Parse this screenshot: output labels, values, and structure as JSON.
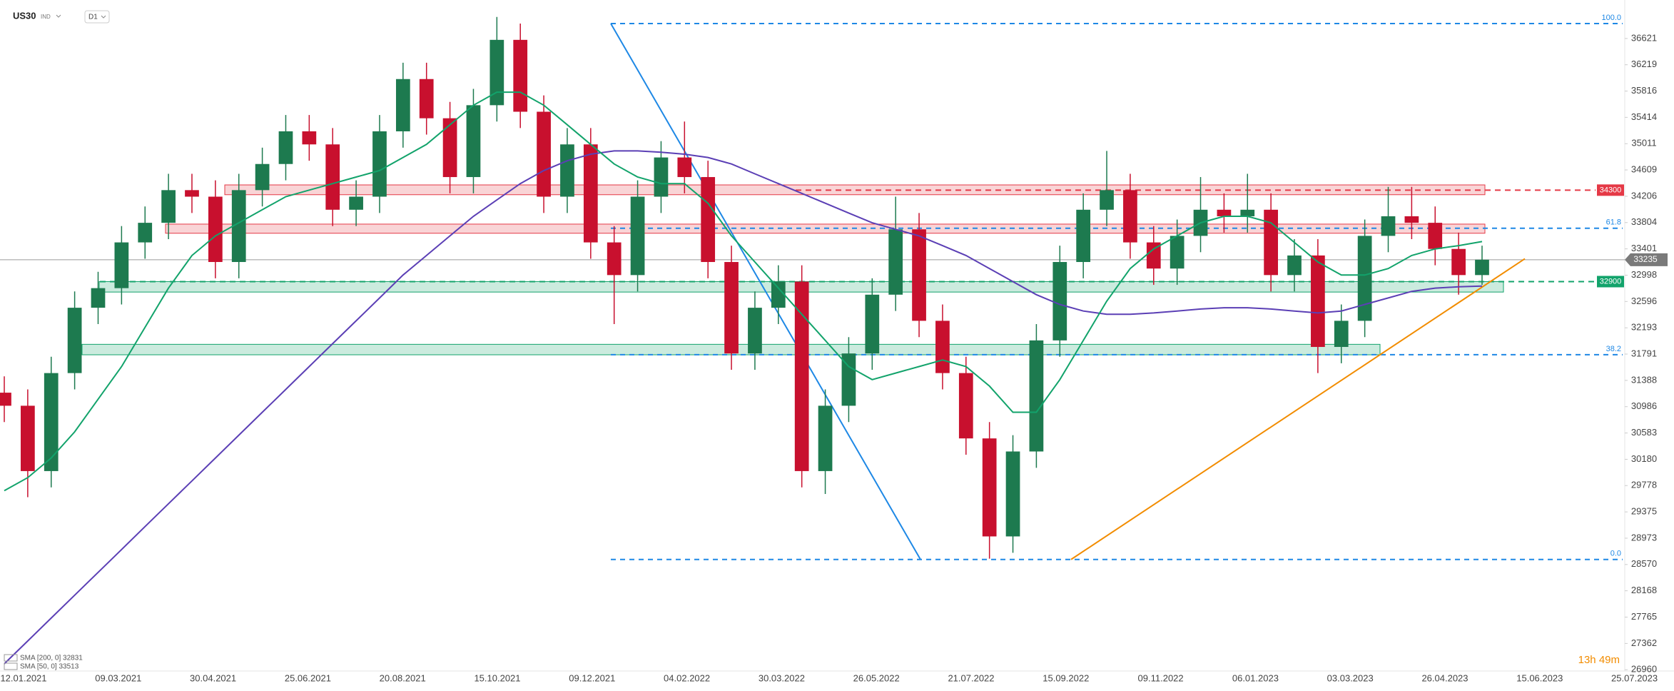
{
  "header": {
    "symbol": "US30",
    "market": "IND",
    "interval": "D1"
  },
  "chart_data": {
    "type": "candlestick",
    "open": [
      31200,
      31000,
      30000,
      31500,
      32500,
      32800,
      33500,
      33800,
      34300,
      34200,
      33200,
      34300,
      34700,
      35200,
      35000,
      34000,
      34200,
      35200,
      36000,
      35400,
      34500,
      35600,
      36600,
      35500,
      34200,
      35000,
      33500,
      33000,
      34200,
      34800,
      34500,
      33200,
      31800,
      32500,
      32900,
      30000,
      31000,
      31800,
      32700,
      33700,
      32300,
      31500,
      30500,
      29000,
      30300,
      32000,
      33200,
      34000,
      34300,
      33500,
      33100,
      33600,
      34000,
      33900,
      34000,
      33000,
      33300,
      31900,
      32300,
      33600,
      33900,
      33800,
      33400,
      33000
    ],
    "high": [
      31450,
      31250,
      31750,
      32750,
      33050,
      33750,
      34050,
      34550,
      34550,
      34450,
      34550,
      34950,
      35450,
      35450,
      35250,
      34450,
      35450,
      36250,
      36250,
      35650,
      35850,
      36950,
      36850,
      35750,
      35250,
      35250,
      33750,
      34450,
      35050,
      35350,
      34750,
      33450,
      32750,
      33150,
      33150,
      31250,
      32050,
      32950,
      34200,
      33950,
      32550,
      31750,
      30750,
      30550,
      32250,
      33450,
      34250,
      34900,
      34550,
      33750,
      33850,
      34500,
      34250,
      34550,
      34250,
      33550,
      33550,
      32550,
      33850,
      34350,
      34350,
      34050,
      33650,
      33450
    ],
    "low": [
      30750,
      29600,
      29750,
      31250,
      32250,
      32550,
      33250,
      33550,
      33950,
      32950,
      32950,
      34050,
      34450,
      34750,
      33750,
      33750,
      33950,
      34950,
      35150,
      34250,
      34250,
      35350,
      35250,
      33950,
      33950,
      33250,
      32250,
      32750,
      33950,
      34250,
      32950,
      31550,
      31550,
      32250,
      29750,
      29650,
      30750,
      31550,
      32450,
      32050,
      31250,
      30250,
      28660,
      28750,
      30050,
      31750,
      32950,
      33750,
      33250,
      32850,
      32850,
      33350,
      33650,
      33650,
      32750,
      32750,
      31500,
      31650,
      32050,
      33350,
      33550,
      33150,
      32700,
      32850
    ],
    "close": [
      31000,
      30000,
      31500,
      32500,
      32800,
      33500,
      33800,
      34300,
      34200,
      33200,
      34300,
      34700,
      35200,
      35000,
      34000,
      34200,
      35200,
      36000,
      35400,
      34500,
      35600,
      36600,
      35500,
      34200,
      35000,
      33500,
      33000,
      34200,
      34800,
      34500,
      33200,
      31800,
      32500,
      32900,
      30000,
      31000,
      31800,
      32700,
      33700,
      32300,
      31500,
      30500,
      29000,
      30300,
      32000,
      33200,
      34000,
      34300,
      33500,
      33100,
      33600,
      34000,
      33900,
      34000,
      33000,
      33300,
      31900,
      32300,
      33600,
      33900,
      33800,
      33400,
      33000,
      33235
    ],
    "colors": {
      "up": "#1d7a4f",
      "down": "#c8102e"
    },
    "series": [
      {
        "name": "SMA [200, 0] 32831",
        "color": "#5b3fb5",
        "values": [
          27050,
          27400,
          27750,
          28100,
          28450,
          28800,
          29150,
          29500,
          29850,
          30200,
          30550,
          30900,
          31250,
          31600,
          31950,
          32300,
          32650,
          33000,
          33300,
          33600,
          33900,
          34150,
          34400,
          34600,
          34750,
          34850,
          34900,
          34900,
          34880,
          34850,
          34800,
          34700,
          34550,
          34400,
          34250,
          34100,
          33950,
          33800,
          33700,
          33600,
          33450,
          33300,
          33100,
          32900,
          32700,
          32550,
          32450,
          32400,
          32400,
          32420,
          32450,
          32480,
          32500,
          32500,
          32480,
          32450,
          32420,
          32450,
          32550,
          32650,
          32750,
          32800,
          32820,
          32831
        ]
      },
      {
        "name": "SMA [50, 0] 33513",
        "color": "#12a36b",
        "values": [
          29700,
          29900,
          30200,
          30600,
          31100,
          31600,
          32200,
          32800,
          33300,
          33600,
          33800,
          34000,
          34200,
          34300,
          34400,
          34500,
          34600,
          34800,
          35000,
          35300,
          35600,
          35800,
          35800,
          35600,
          35300,
          35000,
          34700,
          34500,
          34400,
          34400,
          34100,
          33600,
          33200,
          32800,
          32400,
          32000,
          31600,
          31400,
          31500,
          31600,
          31700,
          31600,
          31300,
          30900,
          30900,
          31400,
          32000,
          32600,
          33100,
          33400,
          33600,
          33800,
          33900,
          33900,
          33800,
          33500,
          33200,
          33000,
          33000,
          33100,
          33300,
          33400,
          33450,
          33513
        ]
      }
    ],
    "ylim": [
      26940,
      37210
    ],
    "yticks": [
      36621,
      36219,
      35816,
      35414,
      35011,
      34609,
      34206,
      33804,
      33401,
      32998,
      32596,
      32193,
      31791,
      31388,
      30986,
      30583,
      30180,
      29778,
      29375,
      28973,
      28570,
      28168,
      27765,
      27362,
      26960
    ],
    "xticks": [
      "12.01.2021",
      "09.03.2021",
      "30.04.2021",
      "25.06.2021",
      "20.08.2021",
      "15.10.2021",
      "09.12.2021",
      "04.02.2022",
      "30.03.2022",
      "26.05.2022",
      "21.07.2022",
      "15.09.2022",
      "09.11.2022",
      "06.01.2023",
      "03.03.2023",
      "26.04.2023",
      "15.06.2023",
      "25.07.2023"
    ],
    "zones": [
      {
        "from": 34230,
        "to": 34380,
        "color": "#e53946"
      },
      {
        "from": 33640,
        "to": 33780,
        "color": "#e53946"
      },
      {
        "from": 32740,
        "to": 32900,
        "color": "#12a36b"
      },
      {
        "from": 31780,
        "to": 31940,
        "color": "#12a36b"
      }
    ],
    "levels": [
      {
        "value": 34300,
        "color": "#e53946"
      },
      {
        "value": 32900,
        "color": "#12a36b"
      }
    ],
    "fib": [
      {
        "value": 36850,
        "label": "100.0"
      },
      {
        "value": 33716,
        "label": "61.8"
      },
      {
        "value": 31781,
        "label": "38.2"
      },
      {
        "value": 28647,
        "label": "0.0"
      }
    ],
    "fib_color": "#1e88e5",
    "trendlines": [
      {
        "color": "#1e88e5",
        "values": [
          36850,
          28647
        ]
      },
      {
        "color": "#f28c00",
        "values": [
          28647,
          33250
        ]
      }
    ],
    "last_price": 33235,
    "countdown": "13h 49m"
  }
}
